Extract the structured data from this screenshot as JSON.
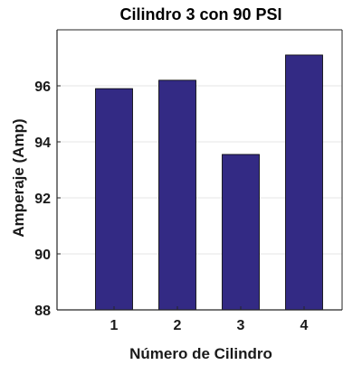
{
  "chart_data": {
    "type": "bar",
    "title": "Cilindro 3 con 90 PSI",
    "xlabel": "Número de Cilindro",
    "ylabel": "Amperaje (Amp)",
    "categories": [
      "1",
      "2",
      "3",
      "4"
    ],
    "values": [
      95.9,
      96.2,
      93.55,
      97.1
    ],
    "ylim": [
      88,
      98
    ],
    "yticks": [
      "88",
      "90",
      "92",
      "94",
      "96"
    ],
    "grid": "horizontal",
    "bar_color": "#332a84",
    "bar_edge_color": "#000000"
  }
}
